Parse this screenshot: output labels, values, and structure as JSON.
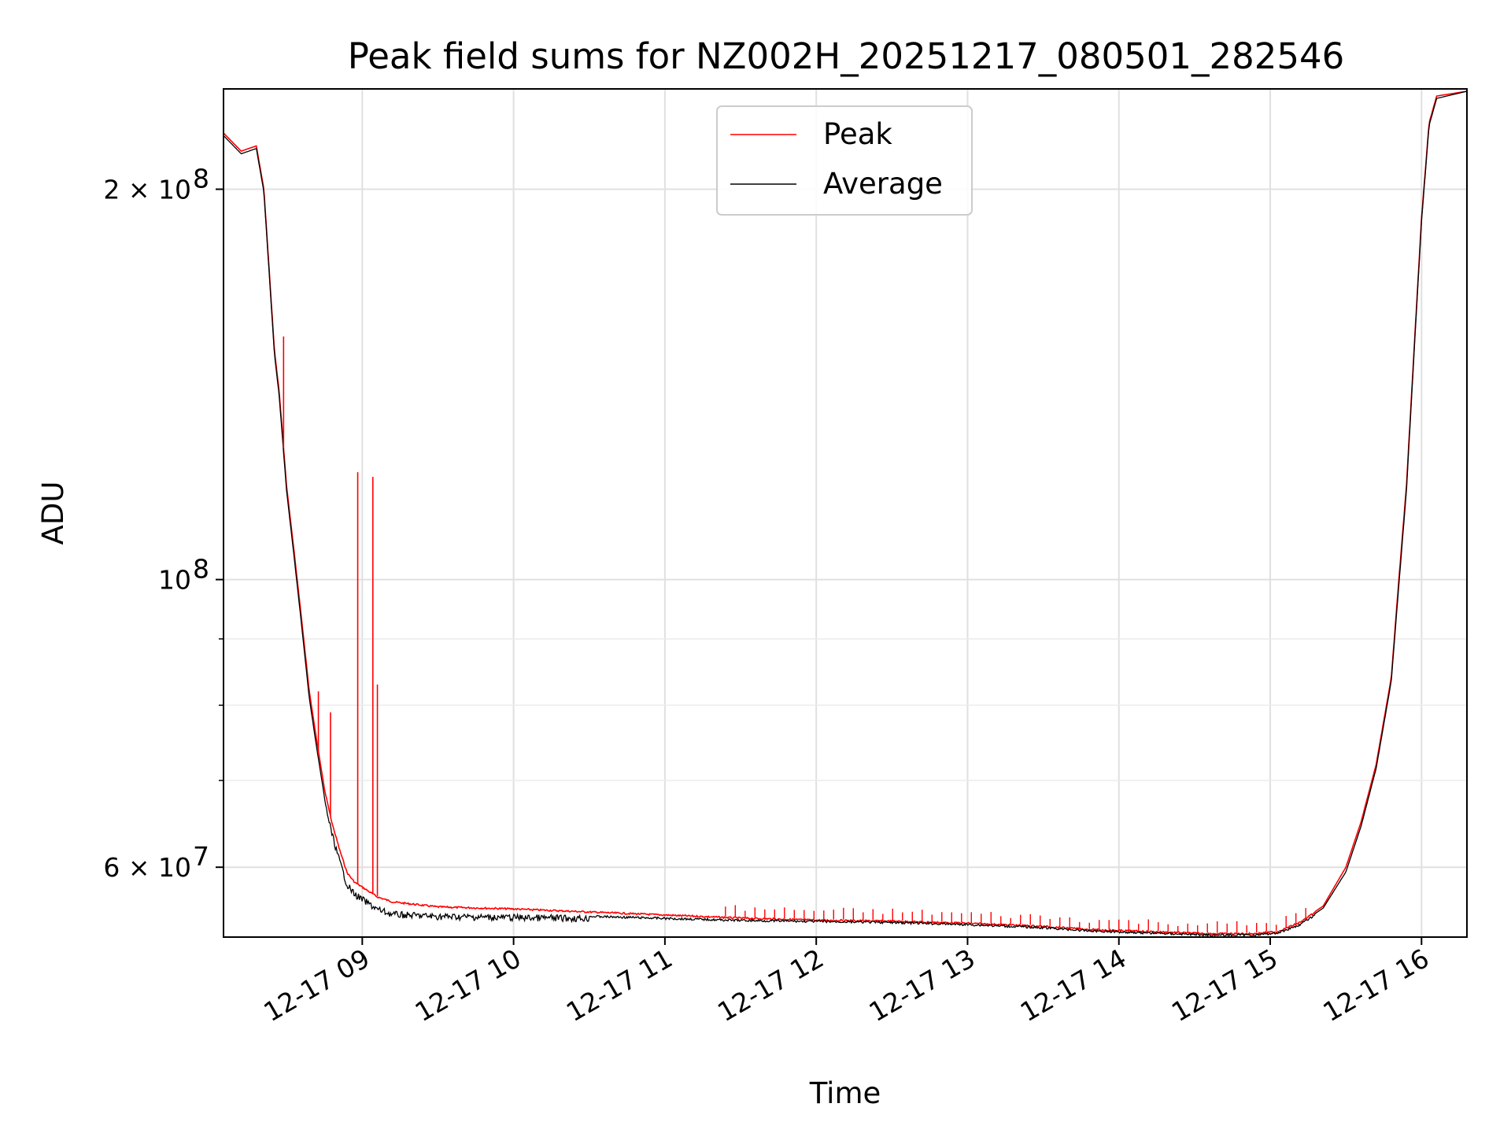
{
  "chart_data": {
    "type": "line",
    "title": "Peak field sums for NZ002H_20251217_080501_282546",
    "xlabel": "Time",
    "ylabel": "ADU",
    "yscale": "log",
    "ylim": [
      53000000,
      239000000
    ],
    "xlim": [
      8.083,
      16.3
    ],
    "grid": true,
    "legend_position": "top-center",
    "x_ticks": [
      {
        "value": 9,
        "label": "12-17 09"
      },
      {
        "value": 10,
        "label": "12-17 10"
      },
      {
        "value": 11,
        "label": "12-17 11"
      },
      {
        "value": 12,
        "label": "12-17 12"
      },
      {
        "value": 13,
        "label": "12-17 13"
      },
      {
        "value": 14,
        "label": "12-17 14"
      },
      {
        "value": 15,
        "label": "12-17 15"
      },
      {
        "value": 16,
        "label": "12-17 16"
      }
    ],
    "y_major_ticks": [
      {
        "value": 60000000,
        "base": "6 × 10",
        "exp": "7"
      },
      {
        "value": 100000000,
        "base": "10",
        "exp": "8"
      },
      {
        "value": 200000000,
        "base": "2 × 10",
        "exp": "8"
      }
    ],
    "y_minor_ticks": [
      70000000,
      80000000,
      90000000
    ],
    "series": [
      {
        "name": "Peak",
        "color": "#ff0000",
        "x": [
          8.083,
          8.2,
          8.3,
          8.35,
          8.42,
          8.45,
          8.5,
          8.55,
          8.6,
          8.65,
          8.7,
          8.75,
          8.8,
          8.85,
          8.9,
          8.95,
          9.0,
          9.05,
          9.1,
          9.2,
          9.5,
          10.0,
          10.5,
          11.0,
          11.5,
          12.0,
          12.5,
          13.0,
          13.5,
          13.8,
          14.2,
          14.6,
          14.9,
          15.05,
          15.2,
          15.35,
          15.5,
          15.6,
          15.7,
          15.8,
          15.85,
          15.9,
          15.95,
          16.0,
          16.05,
          16.1,
          16.3
        ],
        "y": [
          221000000,
          214000000,
          216000000,
          200000000,
          150000000,
          140000000,
          118000000,
          105000000,
          93000000,
          82000000,
          75000000,
          69000000,
          65000000,
          62000000,
          59500000,
          58500000,
          58000000,
          57500000,
          57000000,
          56500000,
          56000000,
          55800000,
          55500000,
          55200000,
          54900000,
          54700000,
          54600000,
          54400000,
          54100000,
          53800000,
          53600000,
          53400000,
          53400000,
          53600000,
          54500000,
          56000000,
          60000000,
          65000000,
          72000000,
          84000000,
          100000000,
          118000000,
          150000000,
          190000000,
          225000000,
          236000000,
          238000000
        ]
      },
      {
        "name": "Average",
        "color": "#000000",
        "x": [
          8.083,
          8.2,
          8.3,
          8.35,
          8.42,
          8.45,
          8.5,
          8.55,
          8.6,
          8.65,
          8.7,
          8.75,
          8.8,
          8.85,
          8.9,
          8.95,
          9.0,
          9.05,
          9.1,
          9.2,
          9.5,
          10.0,
          10.5,
          11.0,
          11.5,
          12.0,
          12.5,
          13.0,
          13.5,
          13.8,
          14.2,
          14.6,
          14.9,
          15.05,
          15.2,
          15.35,
          15.5,
          15.6,
          15.7,
          15.8,
          15.85,
          15.9,
          15.95,
          16.0,
          16.05,
          16.1,
          16.3
        ],
        "y": [
          220000000,
          213000000,
          215000000,
          199000000,
          149000000,
          139000000,
          117000000,
          104000000,
          92000000,
          81000000,
          74000000,
          68000000,
          64000000,
          61000000,
          58500000,
          57500000,
          57000000,
          56500000,
          56000000,
          55500000,
          55300000,
          55200000,
          55100000,
          54900000,
          54700000,
          54600000,
          54500000,
          54300000,
          54000000,
          53700000,
          53500000,
          53300000,
          53300000,
          53500000,
          54300000,
          55800000,
          59500000,
          64500000,
          71500000,
          83500000,
          99000000,
          117000000,
          149000000,
          189000000,
          224000000,
          235000000,
          238000000
        ]
      }
    ],
    "spikes": [
      {
        "x": 8.97,
        "y": 121000000
      },
      {
        "x": 9.07,
        "y": 120000000
      },
      {
        "x": 9.1,
        "y": 83000000
      },
      {
        "x": 8.71,
        "y": 82000000
      },
      {
        "x": 8.79,
        "y": 79000000
      },
      {
        "x": 8.48,
        "y": 154000000
      }
    ]
  }
}
